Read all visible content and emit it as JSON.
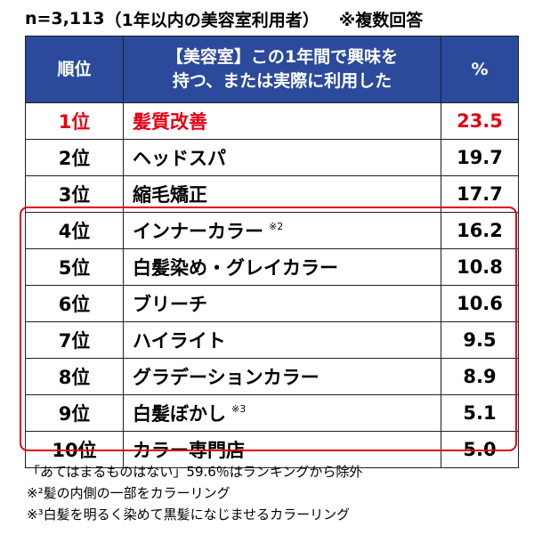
{
  "header": {
    "sample": "n=3,113",
    "respondents": "（1年以内の美容室利用者）",
    "multiple": "※複数回答"
  },
  "columns": {
    "rank": "順位",
    "item_line1": "【美容室】この1年間で興味を",
    "item_line2": "持つ、または実際に利用した",
    "pct": "%"
  },
  "rows": [
    {
      "rank": "1位",
      "item": "髪質改善",
      "note": "",
      "pct": "23.5"
    },
    {
      "rank": "2位",
      "item": "ヘッドスパ",
      "note": "",
      "pct": "19.7"
    },
    {
      "rank": "3位",
      "item": "縮毛矯正",
      "note": "",
      "pct": "17.7"
    },
    {
      "rank": "4位",
      "item": "インナーカラー",
      "note": "※2",
      "pct": "16.2"
    },
    {
      "rank": "5位",
      "item": "白髪染め・グレイカラー",
      "note": "",
      "pct": "10.8"
    },
    {
      "rank": "6位",
      "item": "ブリーチ",
      "note": "",
      "pct": "10.6"
    },
    {
      "rank": "7位",
      "item": "ハイライト",
      "note": "",
      "pct": "9.5"
    },
    {
      "rank": "8位",
      "item": "グラデーションカラー",
      "note": "",
      "pct": "8.9"
    },
    {
      "rank": "9位",
      "item": "白髪ぼかし",
      "note": "※3",
      "pct": "5.1"
    },
    {
      "rank": "10位",
      "item": "カラー専門店",
      "note": "",
      "pct": "5.0"
    }
  ],
  "footnotes": {
    "excluded": "「あてはまるものはない」59.6％はランキングから除外",
    "note2_mark": "※²",
    "note2_text": "髪の内側の一部をカラーリング",
    "note3_mark": "※³",
    "note3_text": "白髪を明るく染めて黒髪になじませるカラーリング"
  },
  "colors": {
    "header_bg": "#2b4a9b",
    "highlight": "#e60012",
    "top_rank_text": "#e60012"
  },
  "chart_data": {
    "type": "table",
    "title": "",
    "columns": [
      "順位",
      "【美容室】この1年間で興味を持つ、または実際に利用した",
      "%"
    ],
    "categories": [
      "髪質改善",
      "ヘッドスパ",
      "縮毛矯正",
      "インナーカラー",
      "白髪染め・グレイカラー",
      "ブリーチ",
      "ハイライト",
      "グラデーションカラー",
      "白髪ぼかし",
      "カラー専門店"
    ],
    "values": [
      23.5,
      19.7,
      17.7,
      16.2,
      10.8,
      10.6,
      9.5,
      8.9,
      5.1,
      5.0
    ]
  }
}
